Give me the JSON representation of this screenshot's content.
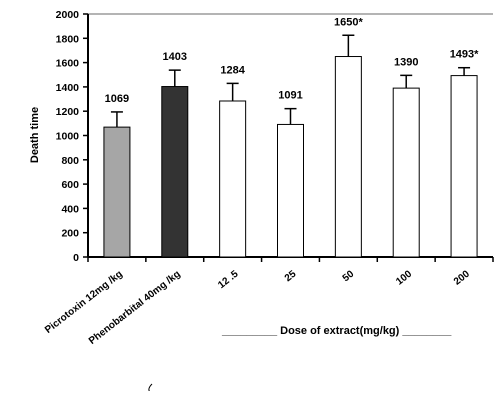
{
  "chart_data": {
    "type": "bar",
    "ylabel": "Death time",
    "xlabel": "Dose of extract(mg/kg)",
    "ylim": [
      0,
      2000
    ],
    "yticks": [
      0,
      200,
      400,
      600,
      800,
      1000,
      1200,
      1400,
      1600,
      1800,
      2000
    ],
    "grid": "top line only",
    "categories": [
      "Picrotoxin 12mg /kg",
      "Phenobarbital 40mg /kg",
      "12 .5",
      "25",
      "50",
      "100",
      "200"
    ],
    "values": [
      1069,
      1403,
      1284,
      1091,
      1650,
      1390,
      1493
    ],
    "errors": [
      125,
      135,
      145,
      130,
      175,
      105,
      65
    ],
    "data_labels": [
      "1069",
      "1403",
      "1284",
      "1091",
      "1650*",
      "1390",
      "1493*"
    ],
    "colors": [
      "#a6a6a6",
      "#333333",
      "#ffffff",
      "#ffffff",
      "#ffffff",
      "#ffffff",
      "#ffffff"
    ]
  }
}
